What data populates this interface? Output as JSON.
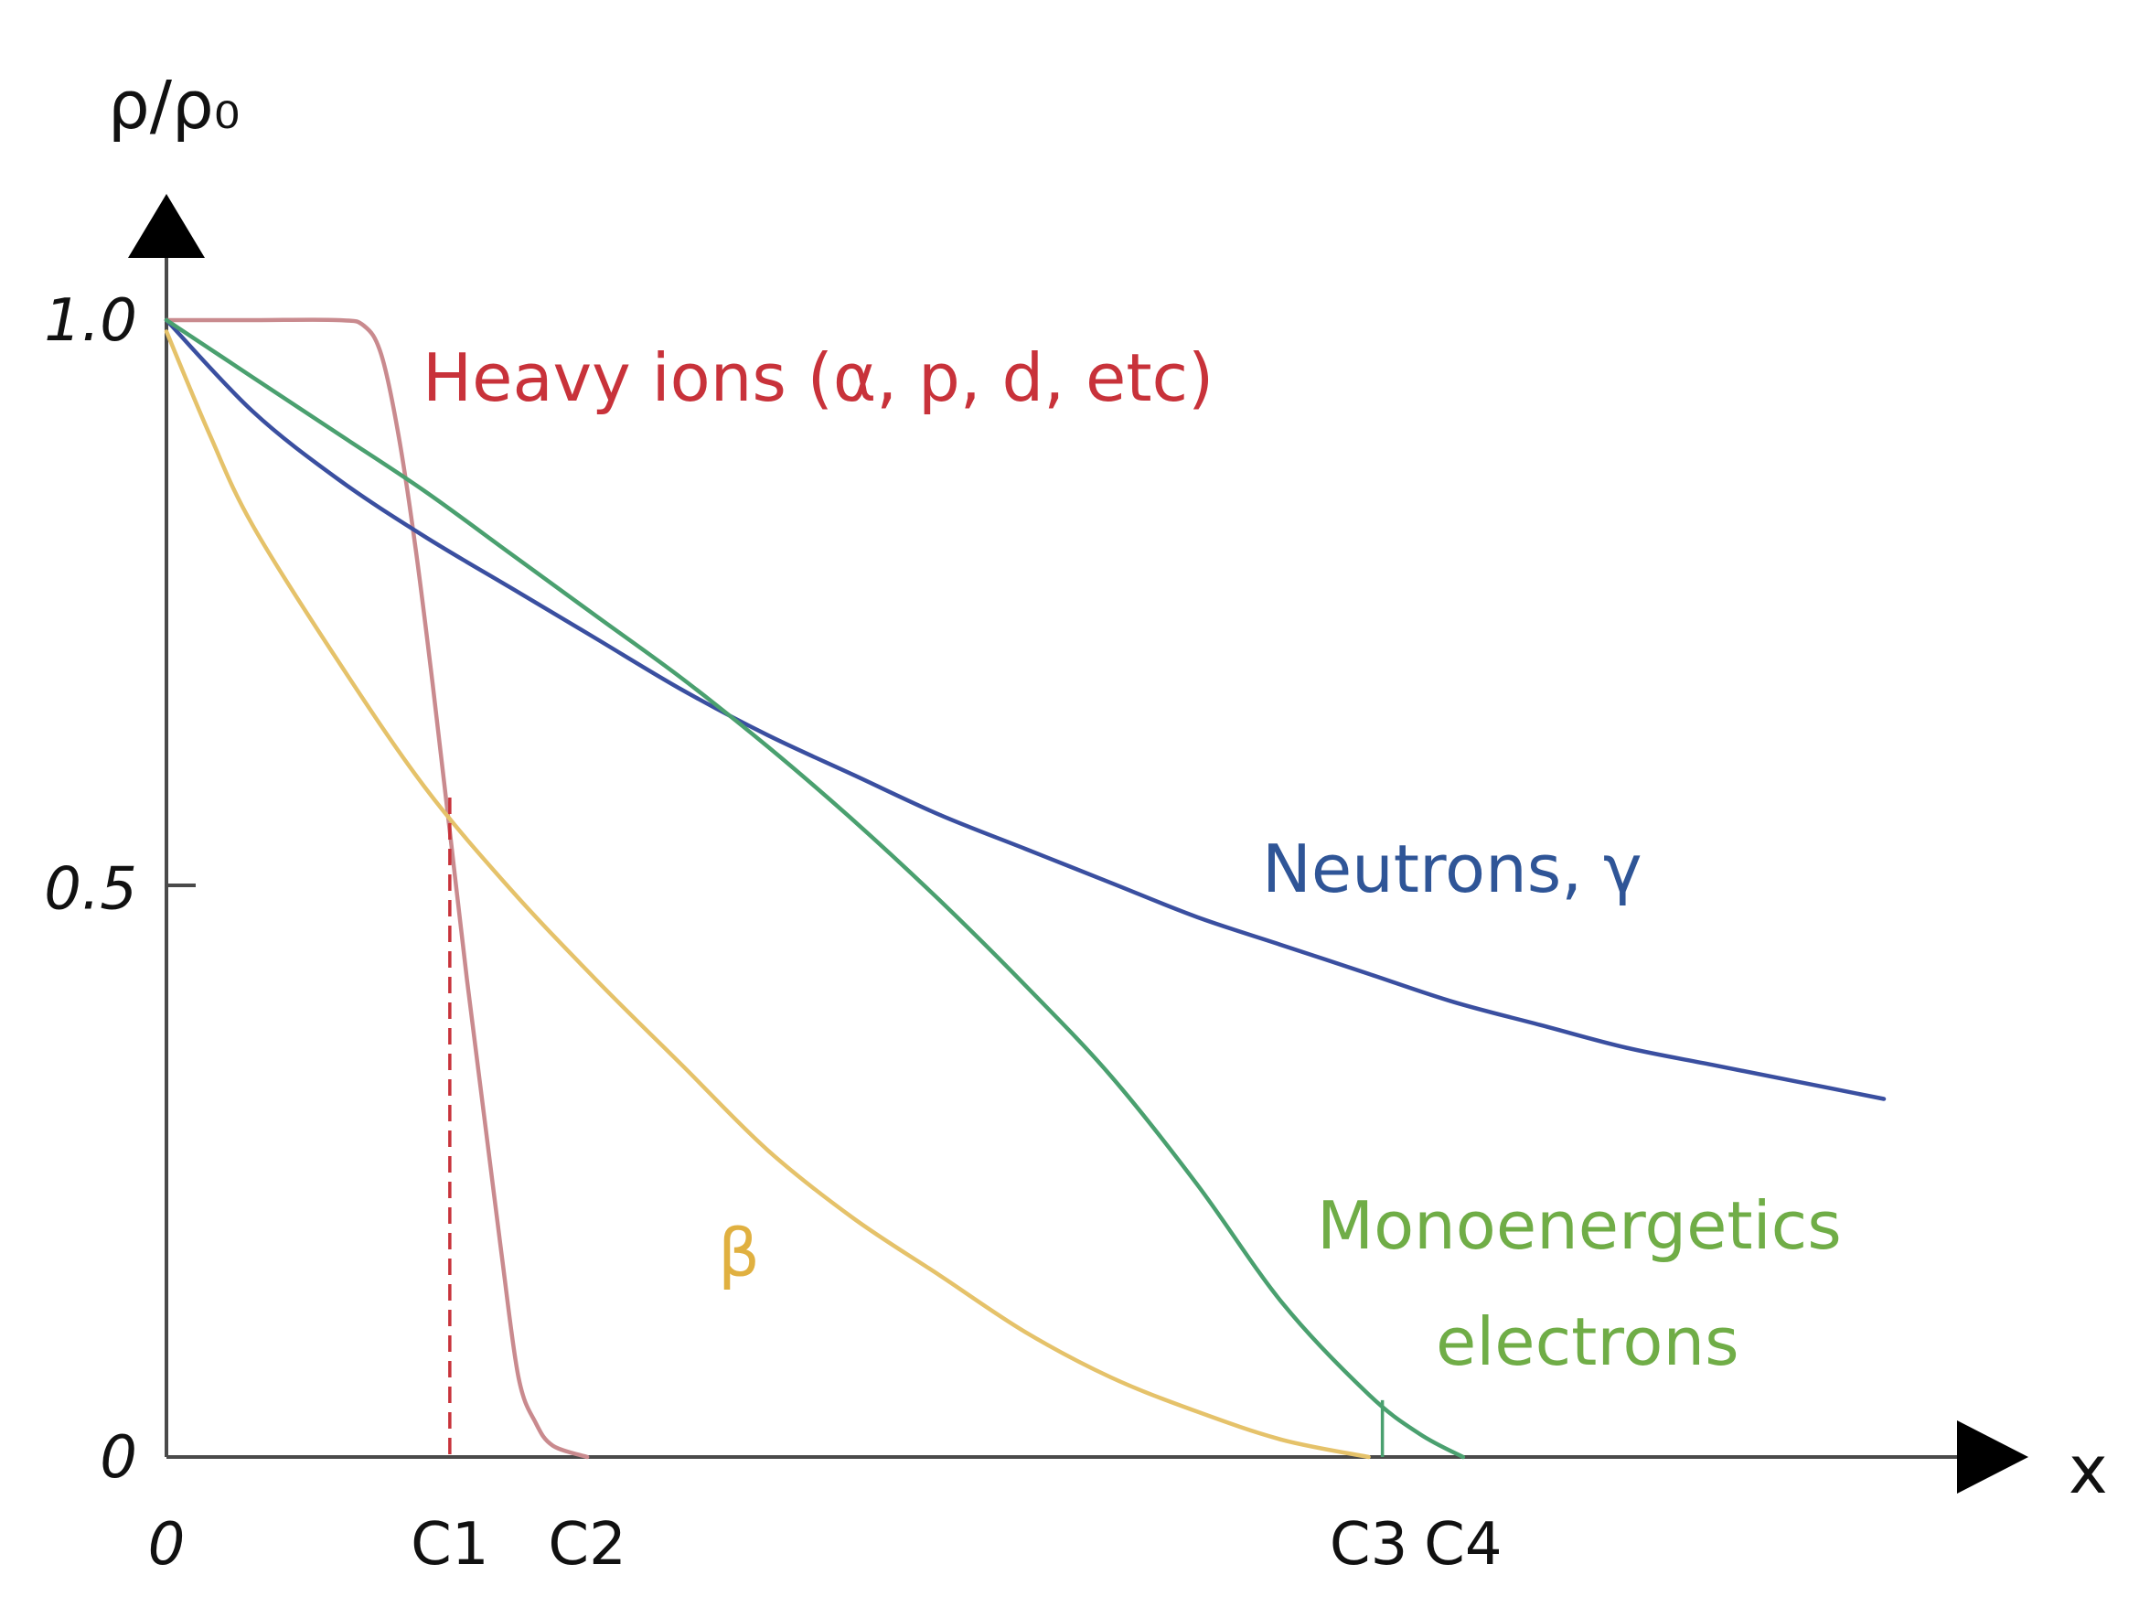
{
  "chart_data": {
    "type": "line",
    "ylabel": "ρ/ρ₀",
    "xlabel": "x",
    "ylim": [
      0,
      1.0
    ],
    "xlim": [
      0,
      10
    ],
    "y_ticks": [
      {
        "value": 1.0,
        "label": "1.0"
      },
      {
        "value": 0.5,
        "label": "0.5"
      },
      {
        "value": 0,
        "label": "0"
      }
    ],
    "x_ticks": [
      {
        "value": 0,
        "label": "0"
      },
      {
        "value": 1.65,
        "label": "C1"
      },
      {
        "value": 2.45,
        "label": "C2"
      },
      {
        "value": 7.0,
        "label": "C3"
      },
      {
        "value": 7.55,
        "label": "C4"
      }
    ],
    "series": [
      {
        "name": "Heavy ions (α, p, d, etc)",
        "color": "#c8323a",
        "stroke": "#c98a8e",
        "x": [
          0,
          0.5,
          1.0,
          1.15,
          1.25,
          1.35,
          1.45,
          1.55,
          1.65,
          1.75,
          1.85,
          1.95,
          2.05,
          2.15,
          2.25,
          2.45
        ],
        "y": [
          1.0,
          1.0,
          1.0,
          0.995,
          0.97,
          0.9,
          0.8,
          0.68,
          0.55,
          0.42,
          0.3,
          0.18,
          0.07,
          0.03,
          0.01,
          0.0
        ]
      },
      {
        "name": "Neutrons, γ",
        "color": "#2f5597",
        "stroke": "#3a4fa0",
        "x": [
          0,
          0.5,
          1,
          1.5,
          2,
          2.5,
          3,
          3.5,
          4,
          4.5,
          5,
          5.5,
          6,
          6.5,
          7,
          7.5,
          8,
          8.5,
          9,
          9.5,
          10
        ],
        "y": [
          1.0,
          0.92,
          0.86,
          0.81,
          0.765,
          0.72,
          0.675,
          0.635,
          0.6,
          0.565,
          0.535,
          0.505,
          0.475,
          0.45,
          0.425,
          0.4,
          0.38,
          0.36,
          0.345,
          0.33,
          0.315
        ]
      },
      {
        "name": "Monoenergetics electrons",
        "color": "#70ad47",
        "stroke": "#4aa06f",
        "x": [
          0,
          0.5,
          1,
          1.5,
          2,
          2.5,
          3,
          3.5,
          4,
          4.5,
          5,
          5.5,
          6,
          6.5,
          7,
          7.3,
          7.55
        ],
        "y": [
          1.0,
          0.95,
          0.9,
          0.85,
          0.795,
          0.74,
          0.685,
          0.625,
          0.56,
          0.49,
          0.415,
          0.335,
          0.24,
          0.135,
          0.055,
          0.02,
          0.0
        ]
      },
      {
        "name": "β",
        "color": "#e0b040",
        "stroke": "#e5c26a",
        "x": [
          0,
          0.25,
          0.5,
          1,
          1.5,
          2,
          2.5,
          3,
          3.5,
          4,
          4.5,
          5,
          5.5,
          6,
          6.5,
          7
        ],
        "y": [
          0.99,
          0.9,
          0.82,
          0.7,
          0.59,
          0.5,
          0.42,
          0.345,
          0.27,
          0.21,
          0.16,
          0.11,
          0.07,
          0.04,
          0.015,
          0.0
        ]
      }
    ],
    "markers": [
      {
        "name": "C1 dashed marker",
        "x": 1.65,
        "y_top": 0.58,
        "color": "#c8323a",
        "style": "dashed"
      },
      {
        "name": "C3 tick",
        "x": 7.08,
        "y_top": 0.05,
        "color": "#4aa06f",
        "style": "solid"
      }
    ],
    "grid": false,
    "legend": "inline labels"
  }
}
